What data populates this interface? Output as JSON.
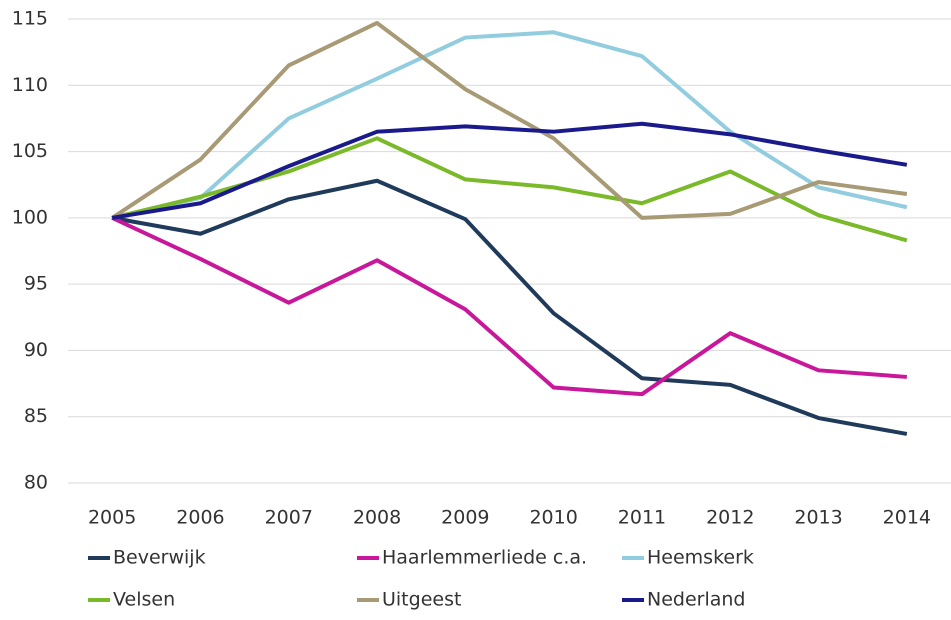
{
  "chart_data": {
    "type": "line",
    "categories": [
      "2005",
      "2006",
      "2007",
      "2008",
      "2009",
      "2010",
      "2011",
      "2012",
      "2013",
      "2014"
    ],
    "series": [
      {
        "name": "Beverwijk",
        "color": "#1f3a5a",
        "values": [
          100,
          98.8,
          101.4,
          102.8,
          99.9,
          92.8,
          87.9,
          87.4,
          84.9,
          83.7
        ]
      },
      {
        "name": "Haarlemmerliede c.a.",
        "color": "#c8179a",
        "values": [
          100,
          96.9,
          93.6,
          96.8,
          93.1,
          87.2,
          86.7,
          91.3,
          88.5,
          88.0
        ]
      },
      {
        "name": "Heemskerk",
        "color": "#92cddf",
        "values": [
          100,
          101.5,
          107.5,
          110.5,
          113.6,
          114.0,
          112.2,
          106.5,
          102.3,
          100.8
        ]
      },
      {
        "name": "Velsen",
        "color": "#7ab929",
        "values": [
          100,
          101.6,
          103.5,
          106.0,
          102.9,
          102.3,
          101.1,
          103.5,
          100.2,
          98.3
        ]
      },
      {
        "name": "Uitgeest",
        "color": "#a89a74",
        "values": [
          100,
          104.4,
          111.5,
          114.7,
          109.7,
          106.0,
          100.0,
          100.3,
          102.7,
          101.8
        ]
      },
      {
        "name": "Nederland",
        "color": "#1a1a8c",
        "values": [
          100,
          101.1,
          103.9,
          106.5,
          106.9,
          106.5,
          107.1,
          106.3,
          105.1,
          104.0
        ]
      }
    ],
    "ylim": [
      80,
      115
    ],
    "yticks": [
      80,
      85,
      90,
      95,
      100,
      105,
      110,
      115
    ],
    "grid": true,
    "legend": "bottom"
  }
}
